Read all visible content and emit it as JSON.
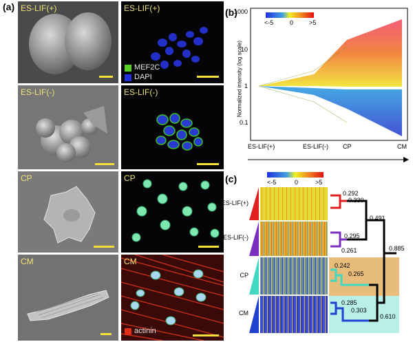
{
  "panel_a": {
    "letter": "(a)",
    "rows": [
      {
        "sem_label": "ES-LIF(+)",
        "flu_label": "ES-LIF(+)",
        "legend": [
          {
            "label": "MEF2C",
            "color": "#55d023"
          },
          {
            "label": "DAPI",
            "color": "#2330e0"
          }
        ]
      },
      {
        "sem_label": "ES-LIF(-)",
        "flu_label": "ES-LIF(-)"
      },
      {
        "sem_label": "CP",
        "flu_label": "CP"
      },
      {
        "sem_label": "CM",
        "flu_label": "CM",
        "legend": [
          {
            "label": "actinin",
            "color": "#e23018"
          }
        ]
      }
    ]
  },
  "panel_b": {
    "letter": "(b)",
    "ylabel": "Normalized intensity (log scale)",
    "yticks": [
      "1000",
      "10",
      "1",
      "0.1"
    ],
    "xticks": [
      "ES-LIF(+)",
      "ES-LIF(-)",
      "CP",
      "CM"
    ],
    "colorbar": {
      "min": "<-5",
      "mid": "0",
      "max": ">5"
    }
  },
  "panel_c": {
    "letter": "(c)",
    "colorbar": {
      "min": "<-5",
      "mid": "0",
      "max": ">5"
    },
    "rows": [
      "ES-LIF(+)",
      "ES-LIF(-)",
      "CP",
      "CM"
    ],
    "dendrogram": {
      "d1": "0.292",
      "d2": "0.330",
      "d3": "0.295",
      "d4": "0.261",
      "d5": "0.491",
      "d6": "0.885",
      "d7": "0.242",
      "d8": "0.265",
      "d9": "0.285",
      "d10": "0.303",
      "d11": "0.610"
    }
  },
  "colors": {
    "accent_label": "#f0e27a",
    "scale_bar": "#f3e03a",
    "es_plus": "#e02020",
    "es_minus": "#7a2fc0",
    "cp": "#40d8c0",
    "cm": "#2040d0"
  }
}
